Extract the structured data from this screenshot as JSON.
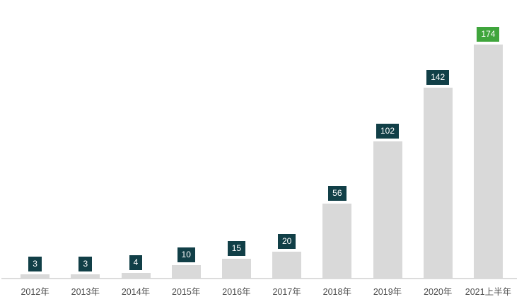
{
  "chart_data": {
    "type": "bar",
    "categories": [
      "2012年",
      "2013年",
      "2014年",
      "2015年",
      "2016年",
      "2017年",
      "2018年",
      "2019年",
      "2020年",
      "2021上半年"
    ],
    "values": [
      3,
      3,
      4,
      10,
      15,
      20,
      56,
      102,
      142,
      174
    ],
    "title": "",
    "xlabel": "",
    "ylabel": "",
    "ylim": [
      0,
      180
    ],
    "grid": false,
    "legend": "none",
    "data_labels": "above-bars-in-boxes",
    "bar_color": "#d9d9d9",
    "label_box_color": "#113f47",
    "label_box_highlight_color": "#3fa53c",
    "label_text_color": "#ffffff",
    "highlight_index": 9,
    "axis_line_color": "#dcdcdc",
    "tick_label_color": "#4d4d4d"
  }
}
